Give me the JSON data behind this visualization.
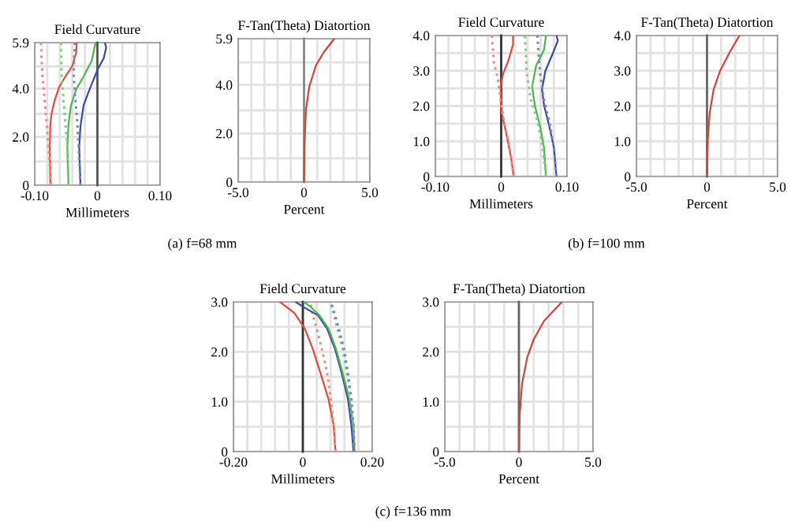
{
  "chart_data": [
    {
      "type": "line",
      "title": "Field Curvature",
      "xlabel": "Millimeters",
      "annotations": [
        "(a) f=68 mm"
      ],
      "grid": true,
      "line_style": "solid",
      "xlim": [
        -0.1,
        0.1
      ],
      "ylim": [
        0,
        5.9
      ],
      "xticks": [
        {
          "value": -0.1,
          "label": "-0.10"
        },
        {
          "value": -0.08,
          "label": null
        },
        {
          "value": -0.06,
          "label": null
        },
        {
          "value": -0.04,
          "label": null
        },
        {
          "value": -0.02,
          "label": null
        },
        0,
        {
          "value": 0.02,
          "label": null
        },
        {
          "value": 0.04,
          "label": null
        },
        {
          "value": 0.06,
          "label": null
        },
        {
          "value": 0.08,
          "label": null
        },
        {
          "value": 0.1,
          "label": "0.10"
        }
      ],
      "yticks": [
        0,
        {
          "value": 0.98,
          "label": null
        },
        {
          "value": 2,
          "label": "2.0"
        },
        {
          "value": 2.95,
          "label": null
        },
        {
          "value": 4,
          "label": "4.0"
        },
        {
          "value": 4.92,
          "label": null
        },
        5.9
      ],
      "ref_lines": [
        {
          "axis": "x",
          "value": 0,
          "color": "#555555"
        }
      ],
      "series": [
        {
          "color": "#e8473f",
          "x": [
            -0.075,
            -0.076,
            -0.075,
            -0.073,
            -0.068,
            -0.061,
            -0.051,
            -0.04,
            -0.034,
            -0.033
          ],
          "values": [
            0,
            1.58,
            2.55,
            2.98,
            3.52,
            4.06,
            4.5,
            4.93,
            5.47,
            5.9
          ]
        },
        {
          "color": "#f08a84",
          "line_style": "dotted",
          "x": [
            -0.074,
            -0.078,
            -0.081,
            -0.084,
            -0.088,
            -0.09
          ],
          "values": [
            0,
            1.58,
            2.55,
            3.52,
            4.6,
            5.9
          ]
        },
        {
          "color": "#4ab84a",
          "x": [
            -0.046,
            -0.048,
            -0.046,
            -0.042,
            -0.034,
            -0.022,
            -0.009,
            -0.003
          ],
          "values": [
            0,
            1.58,
            2.55,
            3.31,
            3.96,
            4.5,
            5.15,
            5.9
          ]
        },
        {
          "color": "#7fcf7f",
          "line_style": "dotted",
          "x": [
            -0.046,
            -0.048,
            -0.051,
            -0.054,
            -0.057,
            -0.058
          ],
          "values": [
            0,
            1.58,
            2.55,
            3.52,
            4.6,
            5.9
          ]
        },
        {
          "color": "#3a4aa8",
          "x": [
            -0.027,
            -0.029,
            -0.027,
            -0.022,
            -0.011,
            0.001,
            0.01,
            0.014,
            0.012
          ],
          "values": [
            0,
            1.58,
            2.44,
            3.31,
            4.06,
            4.82,
            5.25,
            5.69,
            5.9
          ]
        },
        {
          "color": "#7a86c8",
          "line_style": "dotted",
          "x": [
            -0.027,
            -0.03,
            -0.032,
            -0.035,
            -0.038,
            -0.036
          ],
          "values": [
            0,
            1.58,
            2.55,
            3.52,
            4.6,
            5.9
          ]
        }
      ]
    },
    {
      "type": "line",
      "title": "F-Tan(Theta) Diatortion",
      "xlabel": "Percent",
      "grid": true,
      "line_style": "solid",
      "xlim": [
        -5,
        5
      ],
      "ylim": [
        0,
        5.9
      ],
      "xticks": [
        {
          "value": -5,
          "label": "-5.0"
        },
        {
          "value": -4,
          "label": null
        },
        {
          "value": -3,
          "label": null
        },
        {
          "value": -2,
          "label": null
        },
        {
          "value": -1,
          "label": null
        },
        0,
        {
          "value": 1,
          "label": null
        },
        {
          "value": 2,
          "label": null
        },
        {
          "value": 3,
          "label": null
        },
        {
          "value": 4,
          "label": null
        },
        {
          "value": 5,
          "label": "5.0"
        }
      ],
      "yticks": [
        0,
        {
          "value": 0.98,
          "label": null
        },
        {
          "value": 2,
          "label": "2.0"
        },
        {
          "value": 2.95,
          "label": null
        },
        {
          "value": 4,
          "label": "4.0"
        },
        {
          "value": 4.92,
          "label": null
        },
        5.9
      ],
      "ref_lines": [
        {
          "axis": "x",
          "value": 0,
          "color": "#888888"
        }
      ],
      "series": [
        {
          "color": "#d9413a",
          "x": [
            0,
            0.04,
            0.14,
            0.4,
            0.9,
            1.5,
            2.3
          ],
          "values": [
            0,
            1.54,
            2.95,
            3.93,
            4.79,
            5.34,
            5.9
          ]
        }
      ]
    },
    {
      "type": "line",
      "title": "Field Curvature",
      "xlabel": "Millimeters",
      "annotations": [
        "(b) f=100 mm"
      ],
      "grid": true,
      "line_style": "solid",
      "xlim": [
        -0.1,
        0.1
      ],
      "ylim": [
        0,
        4
      ],
      "xticks": [
        {
          "value": -0.1,
          "label": "-0.10"
        },
        {
          "value": -0.08,
          "label": null
        },
        {
          "value": -0.06,
          "label": null
        },
        {
          "value": -0.04,
          "label": null
        },
        {
          "value": -0.02,
          "label": null
        },
        0,
        {
          "value": 0.02,
          "label": null
        },
        {
          "value": 0.04,
          "label": null
        },
        {
          "value": 0.06,
          "label": null
        },
        {
          "value": 0.08,
          "label": null
        },
        {
          "value": 0.1,
          "label": "0.10"
        }
      ],
      "yticks": [
        0,
        {
          "value": 0.5,
          "label": null
        },
        {
          "value": 1,
          "label": "1.0"
        },
        {
          "value": 1.5,
          "label": null
        },
        {
          "value": 2,
          "label": "2.0"
        },
        {
          "value": 2.5,
          "label": null
        },
        {
          "value": 3,
          "label": "3.0"
        },
        {
          "value": 3.5,
          "label": null
        },
        {
          "value": 4,
          "label": "4.0"
        }
      ],
      "ref_lines": [
        {
          "axis": "x",
          "value": 0,
          "color": "#333333"
        }
      ],
      "series": [
        {
          "color": "#e8473f",
          "x": [
            0.019,
            0.015,
            0.007,
            0.0,
            -0.001,
            0.003,
            0.011,
            0.018,
            0.018
          ],
          "values": [
            0,
            0.54,
            1.28,
            1.88,
            2.55,
            2.92,
            3.29,
            3.74,
            4.0
          ]
        },
        {
          "color": "#f08a84",
          "line_style": "dotted",
          "x": [
            0.019,
            0.013,
            0.005,
            -0.001,
            -0.005,
            -0.011,
            -0.014
          ],
          "values": [
            0,
            0.83,
            1.5,
            2.18,
            2.77,
            3.22,
            4.0
          ]
        },
        {
          "color": "#4ab84a",
          "x": [
            0.068,
            0.065,
            0.059,
            0.051,
            0.047,
            0.053,
            0.065,
            0.068
          ],
          "values": [
            0,
            0.83,
            1.43,
            2.03,
            2.55,
            3.14,
            3.59,
            4.0
          ]
        },
        {
          "color": "#7fcf7f",
          "line_style": "dotted",
          "x": [
            0.068,
            0.063,
            0.055,
            0.045,
            0.039,
            0.036
          ],
          "values": [
            0,
            0.83,
            1.58,
            2.18,
            2.92,
            4.0
          ]
        },
        {
          "color": "#3a4aa8",
          "x": [
            0.084,
            0.08,
            0.073,
            0.065,
            0.062,
            0.067,
            0.079,
            0.086,
            0.084
          ],
          "values": [
            0,
            0.83,
            1.43,
            2.03,
            2.47,
            2.99,
            3.52,
            3.85,
            4.0
          ]
        },
        {
          "color": "#7a86c8",
          "line_style": "dotted",
          "x": [
            0.084,
            0.08,
            0.073,
            0.065,
            0.059,
            0.055
          ],
          "values": [
            0,
            0.83,
            1.58,
            2.18,
            2.92,
            4.0
          ]
        }
      ]
    },
    {
      "type": "line",
      "title": "F-Tan(Theta) Diatortion",
      "xlabel": "Percent",
      "grid": true,
      "line_style": "solid",
      "xlim": [
        -5,
        5
      ],
      "ylim": [
        0,
        4
      ],
      "xticks": [
        {
          "value": -5,
          "label": "-5.0"
        },
        {
          "value": -4,
          "label": null
        },
        {
          "value": -3,
          "label": null
        },
        {
          "value": -2,
          "label": null
        },
        {
          "value": -1,
          "label": null
        },
        0,
        {
          "value": 1,
          "label": null
        },
        {
          "value": 2,
          "label": null
        },
        {
          "value": 3,
          "label": null
        },
        {
          "value": 4,
          "label": null
        },
        {
          "value": 5,
          "label": "5.0"
        }
      ],
      "yticks": [
        0,
        {
          "value": 0.5,
          "label": null
        },
        {
          "value": 1,
          "label": "1.0"
        },
        {
          "value": 1.5,
          "label": null
        },
        {
          "value": 2,
          "label": "2.0"
        },
        {
          "value": 2.5,
          "label": null
        },
        {
          "value": 3,
          "label": "3.0"
        },
        {
          "value": 3.5,
          "label": null
        },
        {
          "value": 4,
          "label": "4.0"
        }
      ],
      "ref_lines": [
        {
          "axis": "x",
          "value": 0,
          "color": "#666666"
        }
      ],
      "series": [
        {
          "color": "#d9413a",
          "x": [
            0,
            0.06,
            0.19,
            0.47,
            0.93,
            1.6,
            2.3
          ],
          "values": [
            0,
            1.06,
            1.8,
            2.47,
            3.0,
            3.52,
            4.0
          ]
        }
      ]
    },
    {
      "type": "line",
      "title": "Field Curvature",
      "xlabel": "Millimeters",
      "annotations": [
        "(c) f=136 mm"
      ],
      "grid": true,
      "line_style": "solid",
      "xlim": [
        -0.2,
        0.2
      ],
      "ylim": [
        0,
        3
      ],
      "xticks": [
        {
          "value": -0.2,
          "label": "-0.20"
        },
        {
          "value": -0.16,
          "label": null
        },
        {
          "value": -0.12,
          "label": null
        },
        {
          "value": -0.08,
          "label": null
        },
        {
          "value": -0.04,
          "label": null
        },
        0,
        {
          "value": 0.04,
          "label": null
        },
        {
          "value": 0.08,
          "label": null
        },
        {
          "value": 0.12,
          "label": null
        },
        {
          "value": 0.16,
          "label": null
        },
        {
          "value": 0.2,
          "label": "0.20"
        }
      ],
      "yticks": [
        0,
        {
          "value": 0.5,
          "label": null
        },
        {
          "value": 1,
          "label": "1.0"
        },
        {
          "value": 1.5,
          "label": null
        },
        {
          "value": 2,
          "label": "2.0"
        },
        {
          "value": 2.5,
          "label": null
        },
        {
          "value": 3,
          "label": "3.0"
        }
      ],
      "ref_lines": [
        {
          "axis": "x",
          "value": 0,
          "color": "#333333"
        }
      ],
      "series": [
        {
          "color": "#e8473f",
          "x": [
            0.094,
            0.089,
            0.074,
            0.051,
            0.029,
            0.006,
            -0.025,
            -0.066
          ],
          "values": [
            0,
            0.52,
            1.05,
            1.57,
            2.05,
            2.46,
            2.78,
            3.0
          ]
        },
        {
          "color": "#f08a84",
          "line_style": "dotted",
          "x": [
            0.094,
            0.089,
            0.081,
            0.07,
            0.055,
            0.04,
            0.029,
            0.022
          ],
          "values": [
            0,
            0.52,
            1.05,
            1.57,
            2.05,
            2.46,
            2.73,
            3.0
          ]
        },
        {
          "color": "#3a4aa8",
          "x": [
            0.146,
            0.14,
            0.13,
            0.112,
            0.093,
            0.07,
            0.044,
            0.006,
            -0.021
          ],
          "values": [
            0,
            0.52,
            1.05,
            1.57,
            2.05,
            2.46,
            2.73,
            2.88,
            3.0
          ]
        },
        {
          "color": "#4ab84a",
          "x": [
            0.149,
            0.146,
            0.134,
            0.115,
            0.096,
            0.074,
            0.048,
            0.021,
            0.002
          ],
          "values": [
            0,
            0.52,
            1.05,
            1.57,
            2.05,
            2.46,
            2.73,
            2.91,
            3.0
          ]
        },
        {
          "color": "#7fcf7f",
          "line_style": "dotted",
          "x": [
            0.149,
            0.146,
            0.138,
            0.127,
            0.115,
            0.1,
            0.089,
            0.08
          ],
          "values": [
            0,
            0.52,
            1.05,
            1.57,
            2.05,
            2.46,
            2.73,
            3.0
          ]
        },
        {
          "color": "#7a86c8",
          "line_style": "dotted",
          "x": [
            0.149,
            0.146,
            0.14,
            0.13,
            0.119,
            0.104,
            0.093,
            0.081
          ],
          "values": [
            0,
            0.52,
            1.05,
            1.57,
            2.05,
            2.46,
            2.73,
            3.0
          ]
        }
      ]
    },
    {
      "type": "line",
      "title": "F-Tan(Theta) Diatortion",
      "xlabel": "Percent",
      "grid": true,
      "line_style": "solid",
      "xlim": [
        -5,
        5
      ],
      "ylim": [
        0,
        3
      ],
      "xticks": [
        {
          "value": -5,
          "label": "-5.0"
        },
        {
          "value": -4,
          "label": null
        },
        {
          "value": -3,
          "label": null
        },
        {
          "value": -2,
          "label": null
        },
        {
          "value": -1,
          "label": null
        },
        0,
        {
          "value": 1,
          "label": null
        },
        {
          "value": 2,
          "label": null
        },
        {
          "value": 3,
          "label": null
        },
        {
          "value": 4,
          "label": null
        },
        {
          "value": 5,
          "label": "5.0"
        }
      ],
      "yticks": [
        0,
        {
          "value": 0.5,
          "label": null
        },
        {
          "value": 1,
          "label": "1.0"
        },
        {
          "value": 1.5,
          "label": null
        },
        {
          "value": 2,
          "label": "2.0"
        },
        {
          "value": 2.5,
          "label": null
        },
        {
          "value": 3,
          "label": "3.0"
        }
      ],
      "ref_lines": [
        {
          "axis": "x",
          "value": 0,
          "color": "#666666"
        }
      ],
      "series": [
        {
          "color": "#d9413a",
          "x": [
            0,
            0.05,
            0.21,
            0.56,
            1.0,
            1.7,
            2.9
          ],
          "values": [
            0,
            0.73,
            1.36,
            1.89,
            2.25,
            2.62,
            3.0
          ]
        }
      ]
    }
  ]
}
